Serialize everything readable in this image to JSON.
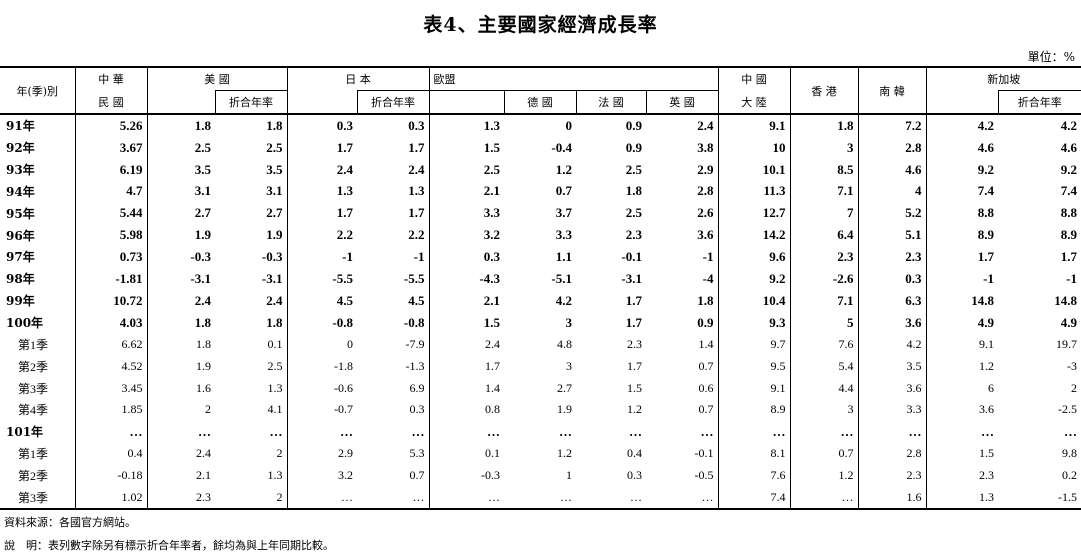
{
  "title": "表4、主要國家經濟成長率",
  "unit": "單位：%",
  "header": {
    "row_label": "年(季)別",
    "taiwan_top": "中 華",
    "taiwan_bottom": "民 國",
    "us": "美 國",
    "japan": "日 本",
    "eu": "歐盟",
    "china_top": "中 國",
    "china_bottom": "大 陸",
    "hk": "香 港",
    "korea": "南 韓",
    "sg": "新加坡",
    "annual": "折合年率",
    "germany": "德 國",
    "france": "法 國",
    "uk": "英 國"
  },
  "rows": [
    {
      "label": "91年",
      "kind": "yr",
      "v": [
        "5.26",
        "1.8",
        "1.8",
        "0.3",
        "0.3",
        "1.3",
        "0",
        "0.9",
        "2.4",
        "9.1",
        "1.8",
        "7.2",
        "4.2",
        "4.2"
      ]
    },
    {
      "label": "92年",
      "kind": "yr",
      "v": [
        "3.67",
        "2.5",
        "2.5",
        "1.7",
        "1.7",
        "1.5",
        "-0.4",
        "0.9",
        "3.8",
        "10",
        "3",
        "2.8",
        "4.6",
        "4.6"
      ]
    },
    {
      "label": "93年",
      "kind": "yr",
      "v": [
        "6.19",
        "3.5",
        "3.5",
        "2.4",
        "2.4",
        "2.5",
        "1.2",
        "2.5",
        "2.9",
        "10.1",
        "8.5",
        "4.6",
        "9.2",
        "9.2"
      ]
    },
    {
      "label": "94年",
      "kind": "yr",
      "v": [
        "4.7",
        "3.1",
        "3.1",
        "1.3",
        "1.3",
        "2.1",
        "0.7",
        "1.8",
        "2.8",
        "11.3",
        "7.1",
        "4",
        "7.4",
        "7.4"
      ]
    },
    {
      "label": "95年",
      "kind": "yr",
      "v": [
        "5.44",
        "2.7",
        "2.7",
        "1.7",
        "1.7",
        "3.3",
        "3.7",
        "2.5",
        "2.6",
        "12.7",
        "7",
        "5.2",
        "8.8",
        "8.8"
      ]
    },
    {
      "label": "96年",
      "kind": "yr",
      "v": [
        "5.98",
        "1.9",
        "1.9",
        "2.2",
        "2.2",
        "3.2",
        "3.3",
        "2.3",
        "3.6",
        "14.2",
        "6.4",
        "5.1",
        "8.9",
        "8.9"
      ]
    },
    {
      "label": "97年",
      "kind": "yr",
      "v": [
        "0.73",
        "-0.3",
        "-0.3",
        "-1",
        "-1",
        "0.3",
        "1.1",
        "-0.1",
        "-1",
        "9.6",
        "2.3",
        "2.3",
        "1.7",
        "1.7"
      ]
    },
    {
      "label": "98年",
      "kind": "yr",
      "v": [
        "-1.81",
        "-3.1",
        "-3.1",
        "-5.5",
        "-5.5",
        "-4.3",
        "-5.1",
        "-3.1",
        "-4",
        "9.2",
        "-2.6",
        "0.3",
        "-1",
        "-1"
      ]
    },
    {
      "label": "99年",
      "kind": "yr",
      "v": [
        "10.72",
        "2.4",
        "2.4",
        "4.5",
        "4.5",
        "2.1",
        "4.2",
        "1.7",
        "1.8",
        "10.4",
        "7.1",
        "6.3",
        "14.8",
        "14.8"
      ]
    },
    {
      "label": "100年",
      "kind": "yr",
      "v": [
        "4.03",
        "1.8",
        "1.8",
        "-0.8",
        "-0.8",
        "1.5",
        "3",
        "1.7",
        "0.9",
        "9.3",
        "5",
        "3.6",
        "4.9",
        "4.9"
      ]
    },
    {
      "label": "第1季",
      "kind": "q",
      "v": [
        "6.62",
        "1.8",
        "0.1",
        "0",
        "-7.9",
        "2.4",
        "4.8",
        "2.3",
        "1.4",
        "9.7",
        "7.6",
        "4.2",
        "9.1",
        "19.7"
      ]
    },
    {
      "label": "第2季",
      "kind": "q",
      "v": [
        "4.52",
        "1.9",
        "2.5",
        "-1.8",
        "-1.3",
        "1.7",
        "3",
        "1.7",
        "0.7",
        "9.5",
        "5.4",
        "3.5",
        "1.2",
        "-3"
      ]
    },
    {
      "label": "第3季",
      "kind": "q",
      "v": [
        "3.45",
        "1.6",
        "1.3",
        "-0.6",
        "6.9",
        "1.4",
        "2.7",
        "1.5",
        "0.6",
        "9.1",
        "4.4",
        "3.6",
        "6",
        "2"
      ]
    },
    {
      "label": "第4季",
      "kind": "q",
      "v": [
        "1.85",
        "2",
        "4.1",
        "-0.7",
        "0.3",
        "0.8",
        "1.9",
        "1.2",
        "0.7",
        "8.9",
        "3",
        "3.3",
        "3.6",
        "-2.5"
      ]
    },
    {
      "label": "101年",
      "kind": "yr",
      "v": [
        "…",
        "…",
        "…",
        "…",
        "…",
        "…",
        "…",
        "…",
        "…",
        "…",
        "…",
        "…",
        "…",
        "…"
      ]
    },
    {
      "label": "第1季",
      "kind": "q",
      "v": [
        "0.4",
        "2.4",
        "2",
        "2.9",
        "5.3",
        "0.1",
        "1.2",
        "0.4",
        "-0.1",
        "8.1",
        "0.7",
        "2.8",
        "1.5",
        "9.8"
      ]
    },
    {
      "label": "第2季",
      "kind": "q",
      "v": [
        "-0.18",
        "2.1",
        "1.3",
        "3.2",
        "0.7",
        "-0.3",
        "1",
        "0.3",
        "-0.5",
        "7.6",
        "1.2",
        "2.3",
        "2.3",
        "0.2"
      ]
    },
    {
      "label": "第3季",
      "kind": "q",
      "v": [
        "1.02",
        "2.3",
        "2",
        "…",
        "…",
        "…",
        "…",
        "…",
        "…",
        "7.4",
        "…",
        "1.6",
        "1.3",
        "-1.5"
      ]
    }
  ],
  "notes": {
    "source": "資料來源：各國官方網站。",
    "explain": "說　明：表列數字除另有標示折合年率者，餘均為與上年同期比較。"
  }
}
